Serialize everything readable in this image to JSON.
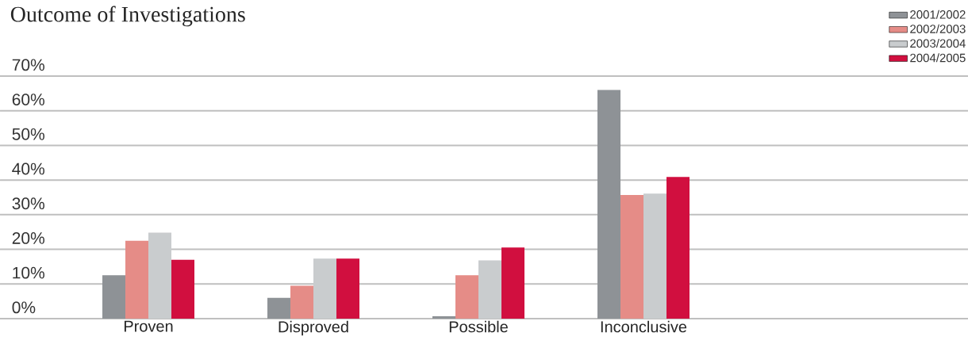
{
  "chart_data": {
    "type": "bar",
    "title": "Outcome of Investigations",
    "categories": [
      "Proven",
      "Disproved",
      "Possible",
      "Inconclusive"
    ],
    "series": [
      {
        "name": "2001/2002",
        "color": "#8e9296",
        "values": [
          12.5,
          6,
          0.7,
          66
        ]
      },
      {
        "name": "2002/2003",
        "color": "#e58c87",
        "values": [
          22.5,
          9.5,
          12.5,
          35.7
        ]
      },
      {
        "name": "2003/2004",
        "color": "#c9ccce",
        "values": [
          24.8,
          17.3,
          16.8,
          36.1
        ]
      },
      {
        "name": "2004/2005",
        "color": "#d10f3f",
        "values": [
          17,
          17.3,
          20.5,
          40.9
        ]
      }
    ],
    "ylim": [
      0,
      70
    ],
    "yticks": [
      {
        "value": 0,
        "label": "0%"
      },
      {
        "value": 10,
        "label": "10%"
      },
      {
        "value": 20,
        "label": "20%"
      },
      {
        "value": 30,
        "label": "30%"
      },
      {
        "value": 40,
        "label": "40%"
      },
      {
        "value": 50,
        "label": "50%"
      },
      {
        "value": 60,
        "label": "60%"
      },
      {
        "value": 70,
        "label": "70%"
      }
    ],
    "grid": "y",
    "legend": "top right"
  }
}
